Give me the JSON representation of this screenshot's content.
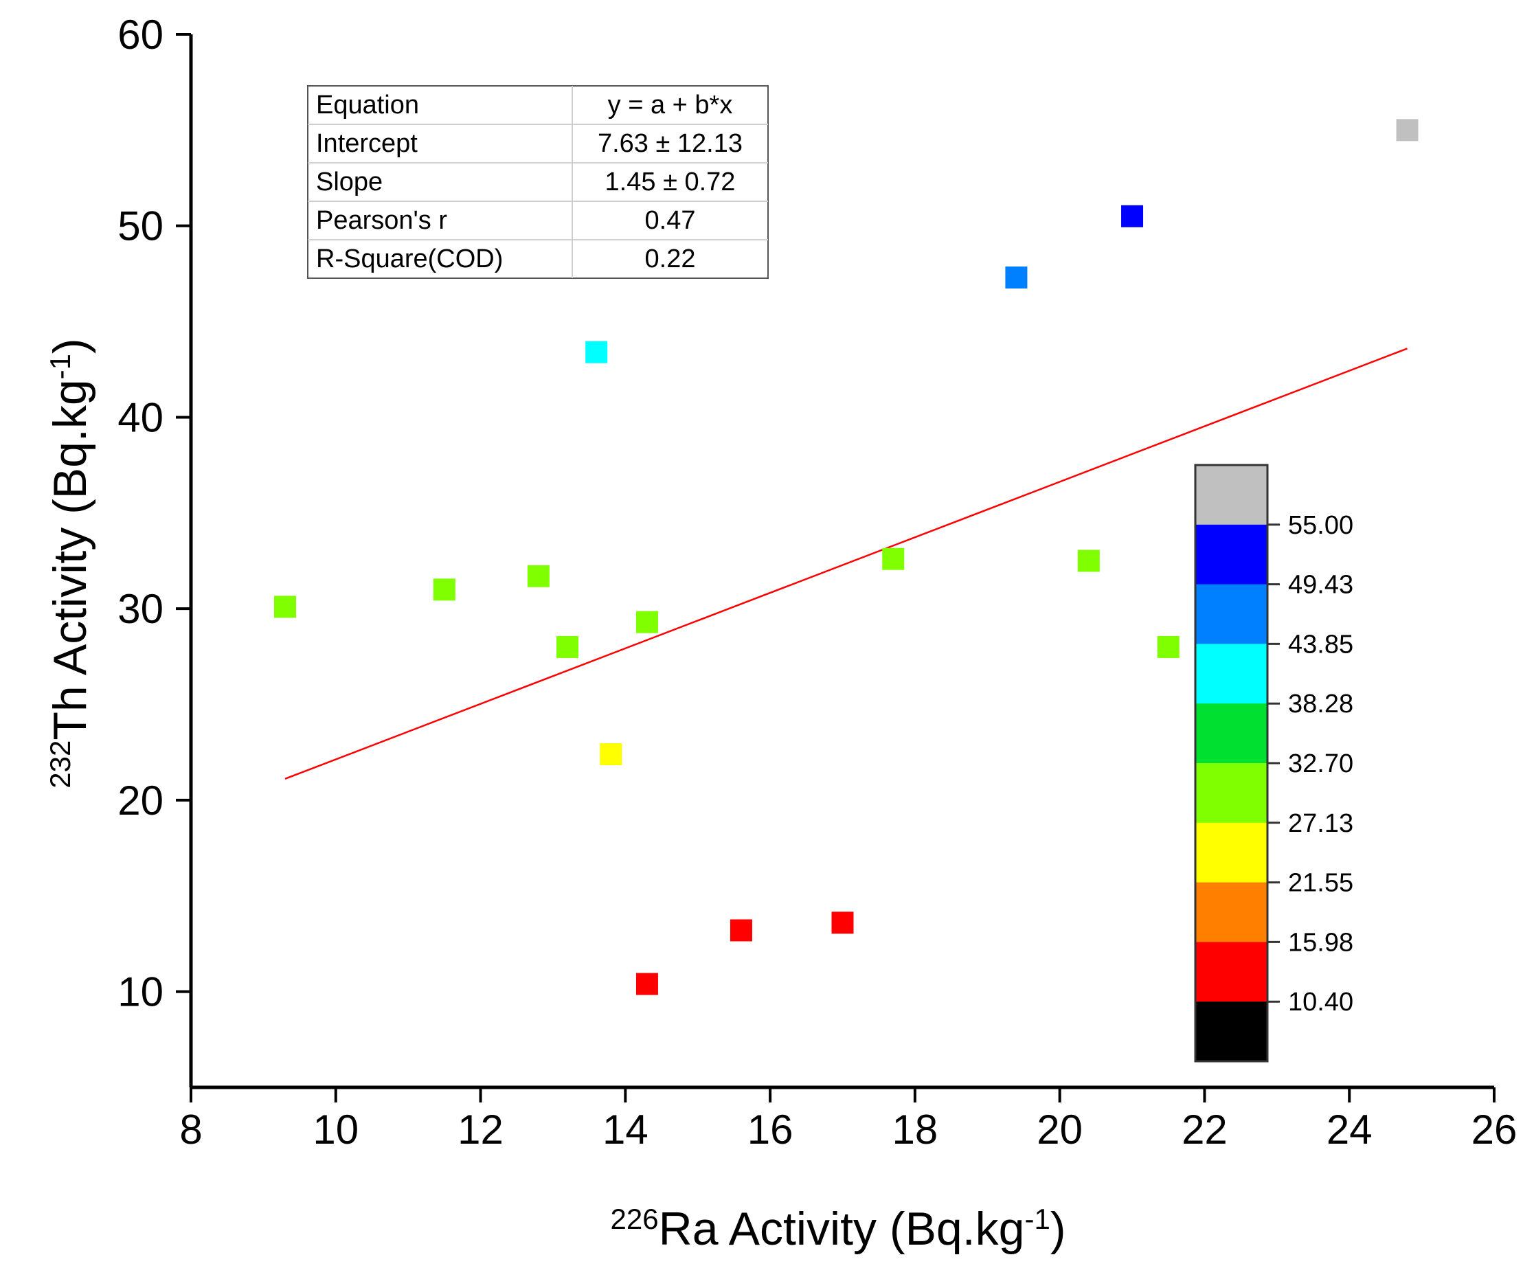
{
  "chart_data": {
    "type": "scatter",
    "title": "",
    "xlabel": {
      "sup": "226",
      "main": "Ra Activity (Bq.kg",
      "unitSup": "-1",
      "end": ")"
    },
    "ylabel": {
      "sup": "232",
      "main": "Th Activity (Bq.kg",
      "unitSup": "-1",
      "end": ")"
    },
    "xlim": [
      8,
      26
    ],
    "ylim": [
      5,
      60
    ],
    "xticks": [
      8,
      10,
      12,
      14,
      16,
      18,
      20,
      22,
      24,
      26
    ],
    "yticks": [
      10,
      20,
      30,
      40,
      50,
      60
    ],
    "points": [
      {
        "x": 9.3,
        "y": 30.1
      },
      {
        "x": 11.5,
        "y": 31.0
      },
      {
        "x": 12.8,
        "y": 31.7
      },
      {
        "x": 13.2,
        "y": 28.0
      },
      {
        "x": 13.6,
        "y": 43.4
      },
      {
        "x": 13.8,
        "y": 22.4
      },
      {
        "x": 14.3,
        "y": 29.3
      },
      {
        "x": 14.3,
        "y": 10.4
      },
      {
        "x": 15.6,
        "y": 13.2
      },
      {
        "x": 17.0,
        "y": 13.6
      },
      {
        "x": 17.7,
        "y": 32.6
      },
      {
        "x": 19.4,
        "y": 47.3
      },
      {
        "x": 20.4,
        "y": 32.5
      },
      {
        "x": 21.0,
        "y": 50.5
      },
      {
        "x": 21.5,
        "y": 28.0
      },
      {
        "x": 24.8,
        "y": 55.0
      }
    ],
    "fit": {
      "intercept": 7.63,
      "slope": 1.45,
      "xrange": [
        9.3,
        24.8
      ],
      "color": "#ff0000"
    },
    "fit_table": [
      [
        "Equation",
        "y = a + b*x"
      ],
      [
        "Intercept",
        "7.63 ± 12.13"
      ],
      [
        "Slope",
        "1.45 ± 0.72"
      ],
      [
        "Pearson's r",
        "0.47"
      ],
      [
        "R-Square(COD)",
        "0.22"
      ]
    ],
    "colorbar": {
      "levels": [
        "55.00",
        "49.43",
        "43.85",
        "38.28",
        "32.70",
        "27.13",
        "21.55",
        "15.98",
        "10.40"
      ],
      "thresholds": [
        10.4,
        15.98,
        21.55,
        27.13,
        32.7,
        38.28,
        43.85,
        49.43,
        55.0
      ],
      "colors": [
        "#000000",
        "#ff0000",
        "#ff8000",
        "#ffff00",
        "#80ff00",
        "#00e030",
        "#00ffff",
        "#0080ff",
        "#0000ff",
        "#c0c0c0"
      ]
    }
  }
}
